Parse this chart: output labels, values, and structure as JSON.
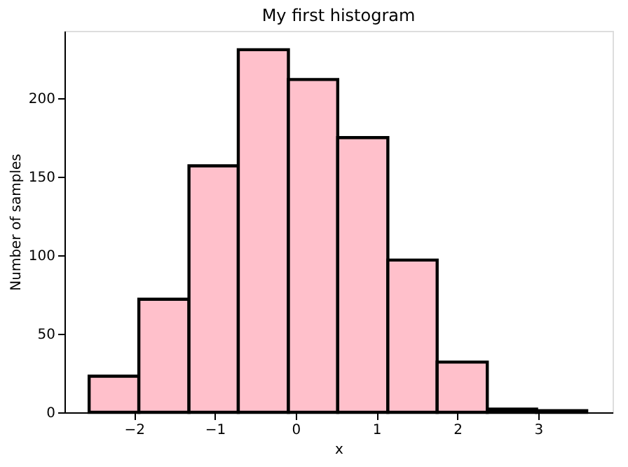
{
  "chart_data": {
    "type": "histogram",
    "title": "My first histogram",
    "xlabel": "x",
    "ylabel": "Number of samples",
    "bins": [
      -2.555,
      -1.94,
      -1.32,
      -0.71,
      -0.09,
      0.52,
      1.14,
      1.75,
      2.37,
      2.98,
      3.6
    ],
    "values": [
      23,
      72,
      157,
      231,
      212,
      175,
      97,
      32,
      2,
      1
    ],
    "color": "#ffc0cb",
    "xlim": [
      -2.86,
      3.92
    ],
    "xticks": [
      -2,
      -1,
      0,
      1,
      2,
      3
    ],
    "ylim": [
      0,
      243
    ],
    "yticks": [
      0,
      50,
      100,
      150,
      200
    ],
    "grid": false
  }
}
